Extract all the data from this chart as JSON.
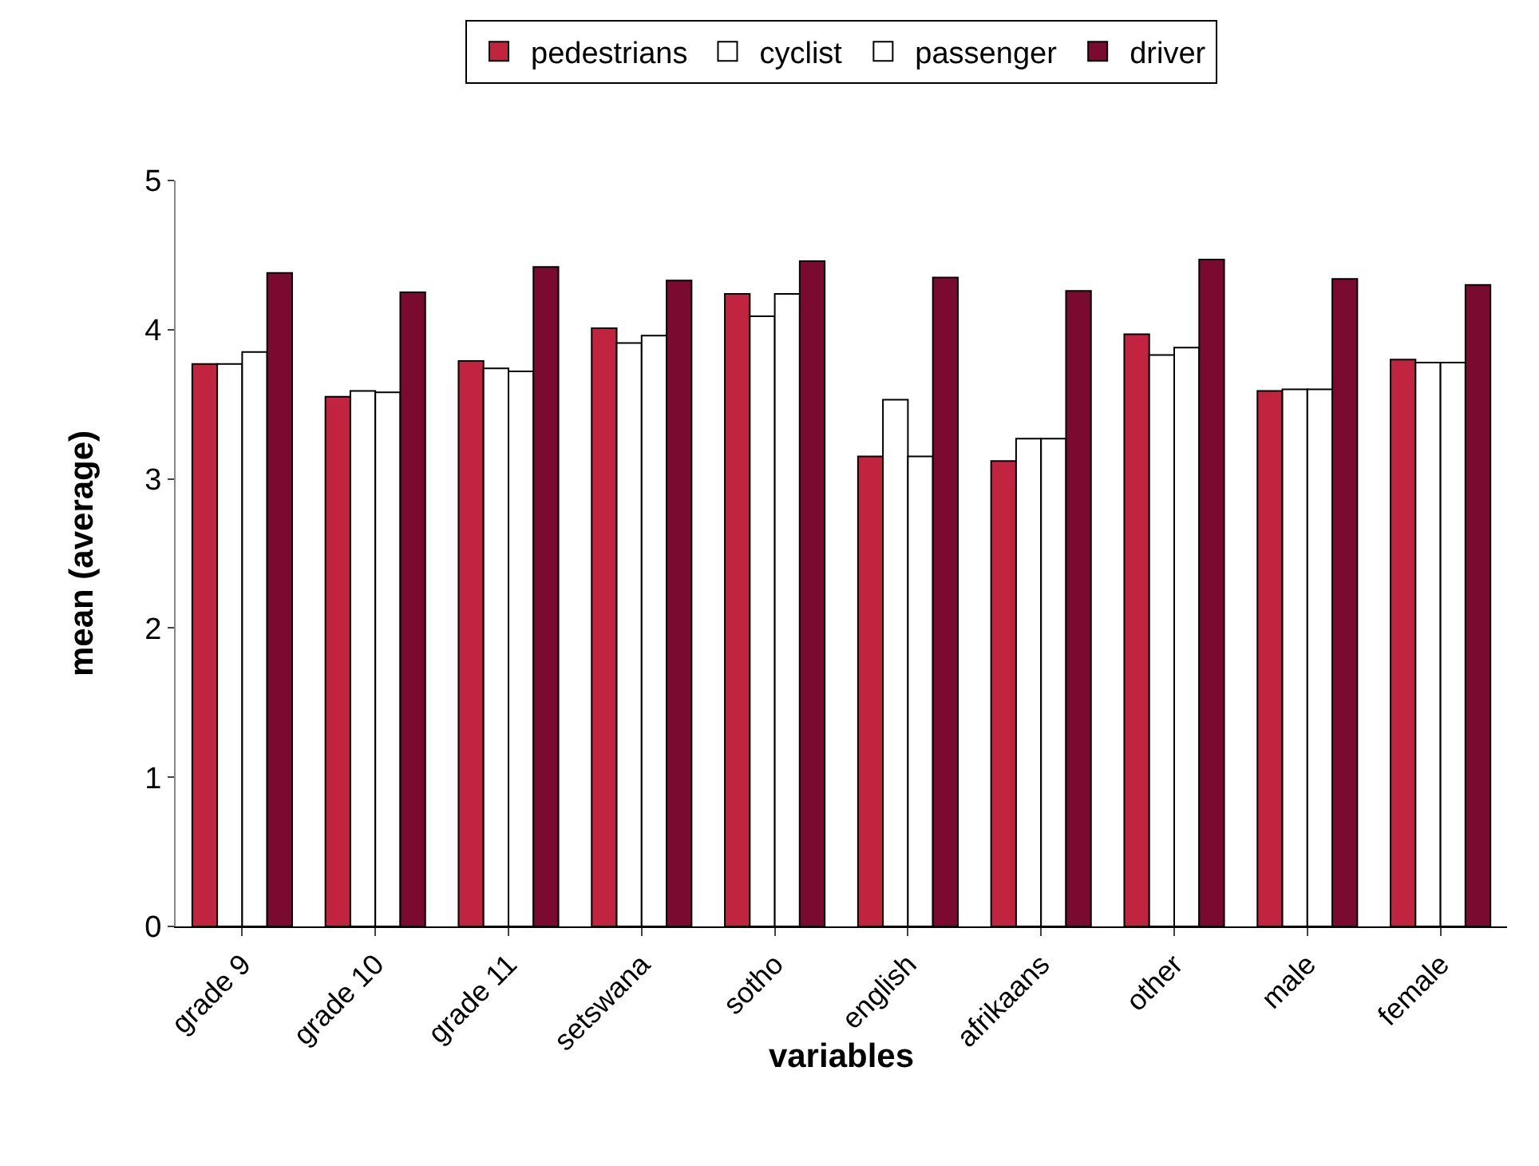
{
  "chart_data": {
    "type": "bar",
    "xlabel": "variables",
    "ylabel": "mean (average)",
    "categories": [
      "grade 9",
      "grade 10",
      "grade 11",
      "setswana",
      "sotho",
      "english",
      "afrikaans",
      "other",
      "male",
      "female"
    ],
    "series": [
      {
        "name": "pedestrians",
        "color": "#c0243f",
        "values": [
          3.77,
          3.55,
          3.79,
          4.01,
          4.24,
          3.15,
          3.12,
          3.97,
          3.59,
          3.8
        ]
      },
      {
        "name": "cyclist",
        "color": "#ffffff",
        "values": [
          3.77,
          3.59,
          3.74,
          3.91,
          4.09,
          3.53,
          3.27,
          3.83,
          3.6,
          3.78
        ]
      },
      {
        "name": "passenger",
        "color": "#ffffff",
        "values": [
          3.85,
          3.58,
          3.72,
          3.96,
          4.24,
          3.15,
          3.27,
          3.88,
          3.6,
          3.78
        ]
      },
      {
        "name": "driver",
        "color": "#7a0a30",
        "values": [
          4.38,
          4.25,
          4.42,
          4.33,
          4.46,
          4.35,
          4.26,
          4.47,
          4.34,
          4.3
        ]
      }
    ],
    "ylim": [
      0,
      5
    ],
    "yticks": [
      0,
      1,
      2,
      3,
      4,
      5
    ],
    "grid": false,
    "legend": "top"
  }
}
